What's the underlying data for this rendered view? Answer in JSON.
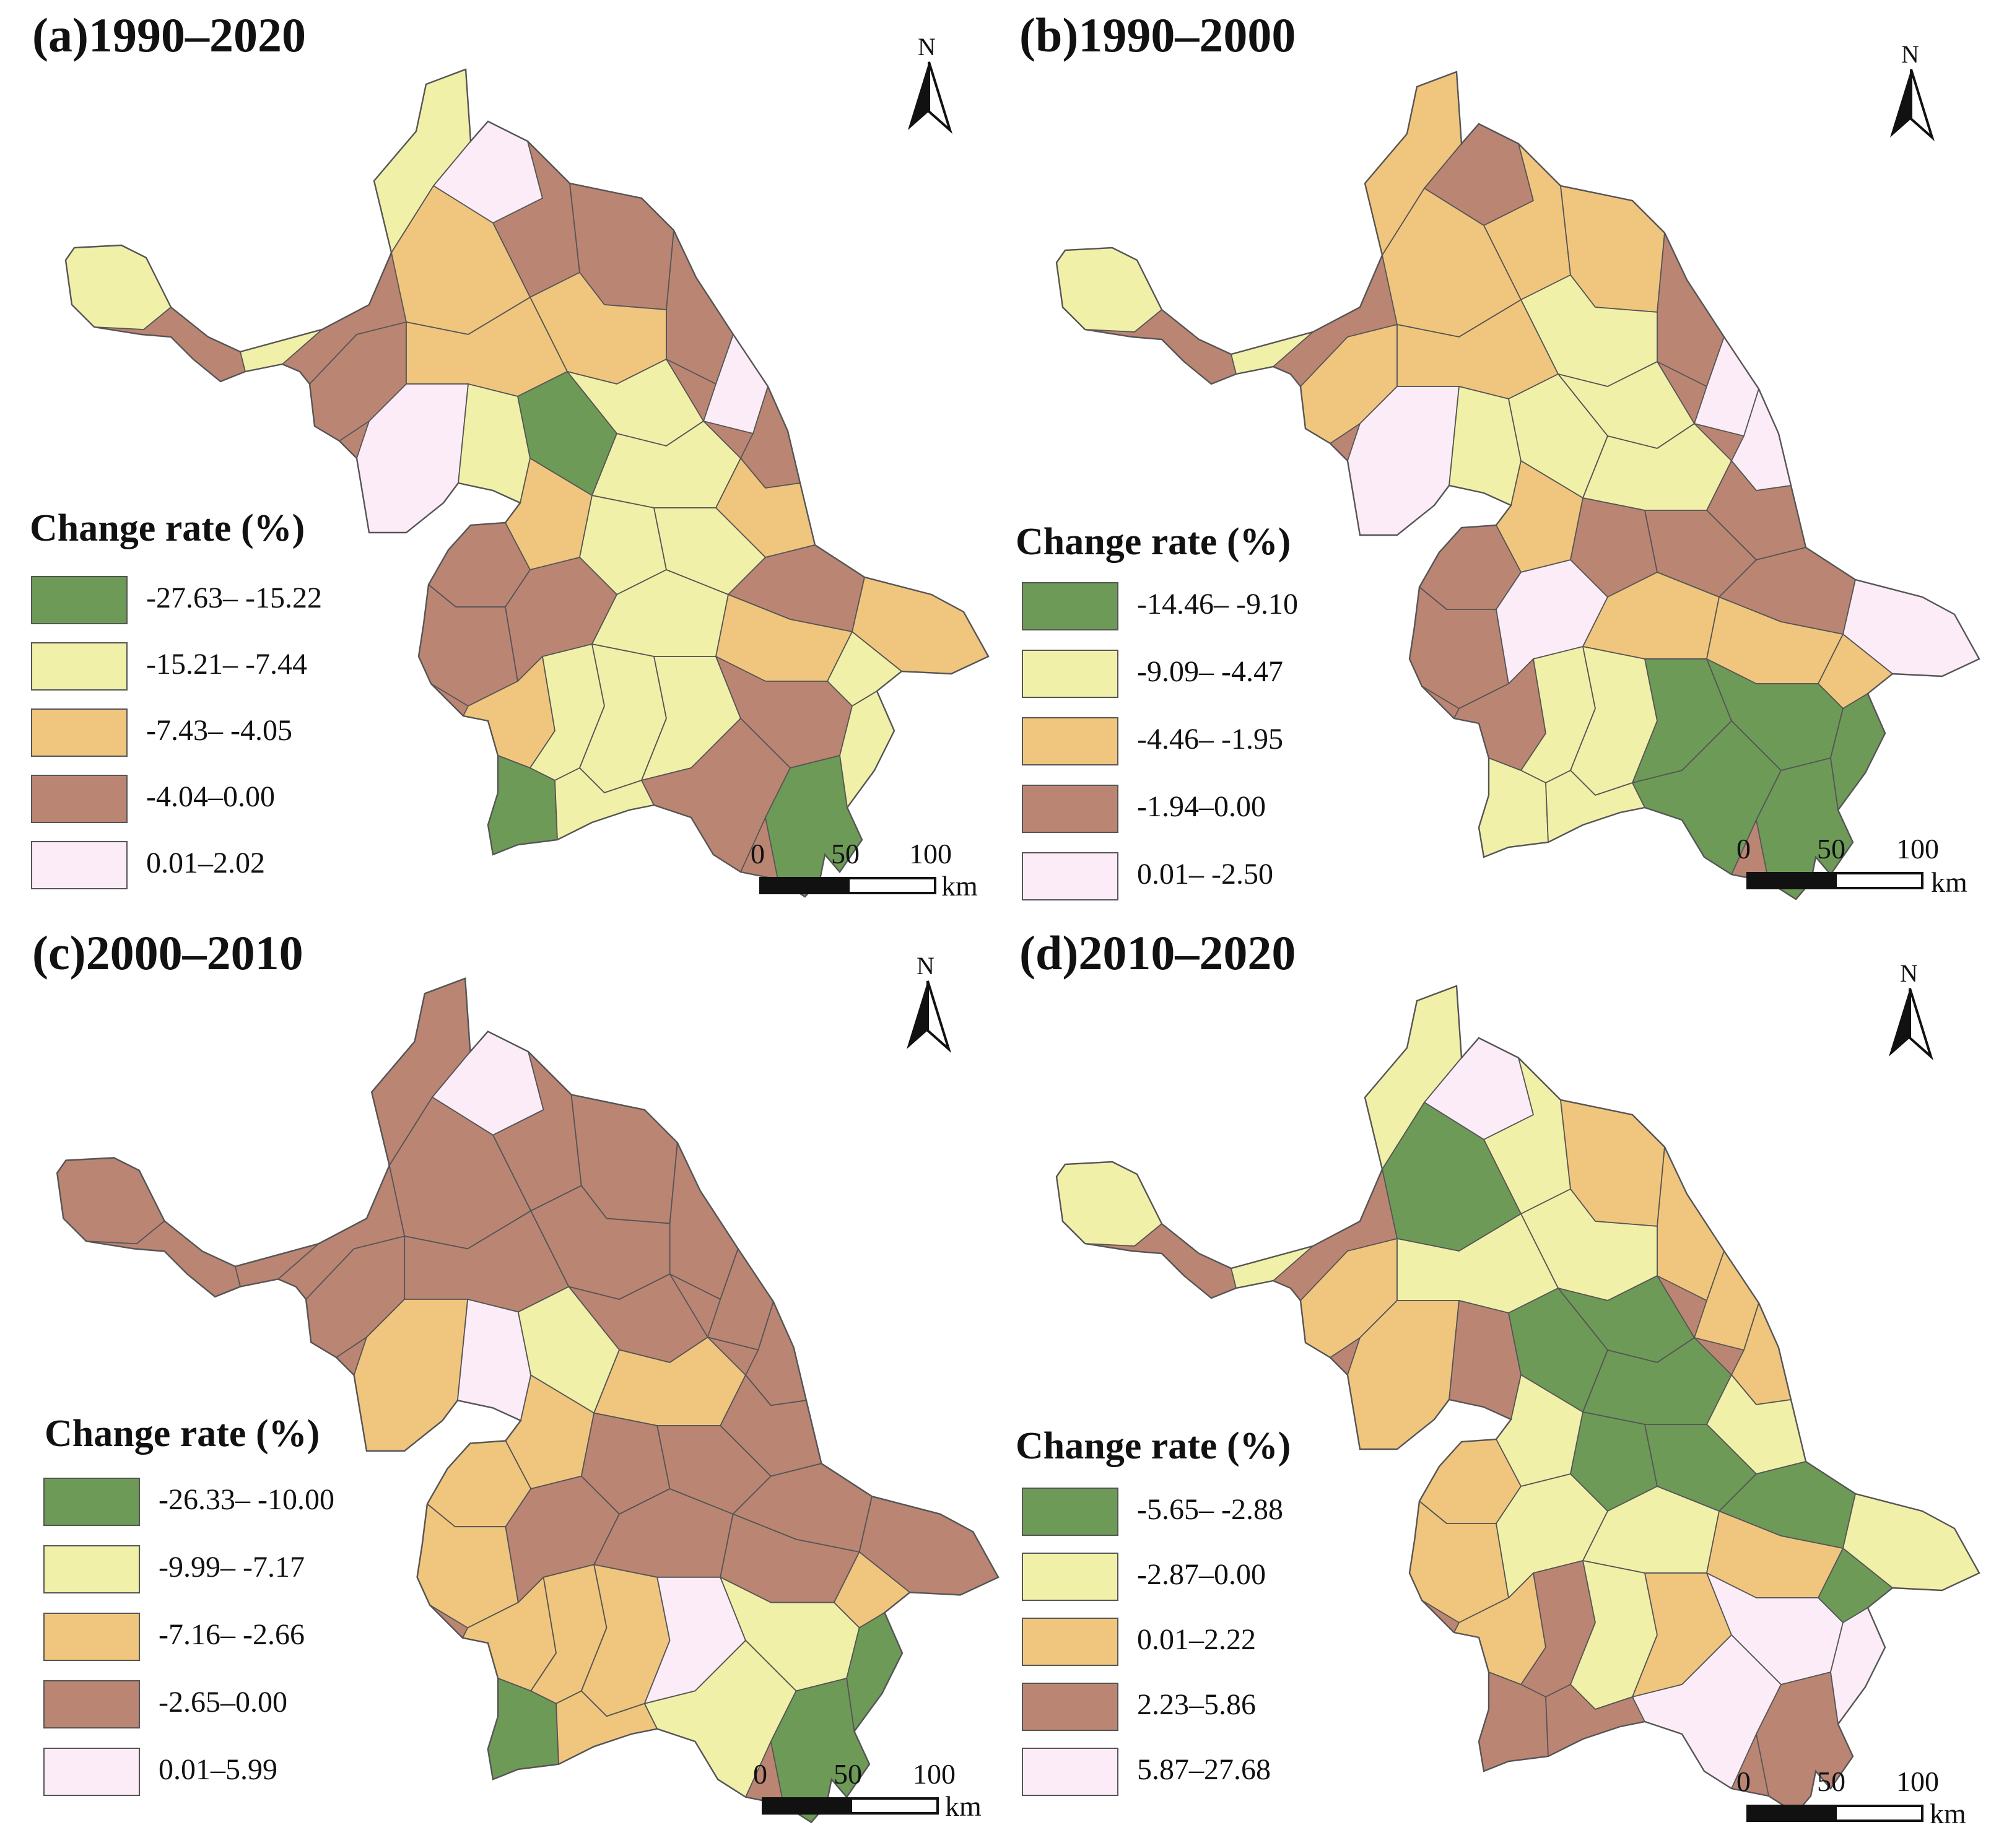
{
  "colors": {
    "green": "#6e9a58",
    "yellow": "#f1f0a9",
    "orange": "#f0c67e",
    "brown": "#bb8574",
    "pink": "#fbecf8",
    "border": "#555555"
  },
  "north_label": "N",
  "scale_bar": {
    "ticks": [
      "0",
      "50",
      "100"
    ],
    "unit": "km"
  },
  "panels": [
    {
      "title": "(a)1990–2020",
      "legend_title": "Change rate (%)",
      "legend": [
        {
          "label": "-27.63– -15.22",
          "color": "green"
        },
        {
          "label": "-15.21– -7.44",
          "color": "yellow"
        },
        {
          "label": "-7.43– -4.05",
          "color": "orange"
        },
        {
          "label": "-4.04–0.00",
          "color": "brown"
        },
        {
          "label": "0.01–2.02",
          "color": "pink"
        }
      ]
    },
    {
      "title": "(b)1990–2000",
      "legend_title": "Change rate (%)",
      "legend": [
        {
          "label": "-14.46– -9.10",
          "color": "green"
        },
        {
          "label": "-9.09– -4.47",
          "color": "yellow"
        },
        {
          "label": "-4.46– -1.95",
          "color": "orange"
        },
        {
          "label": "-1.94–0.00",
          "color": "brown"
        },
        {
          "label": "0.01– -2.50",
          "color": "pink"
        }
      ]
    },
    {
      "title": "(c)2000–2010",
      "legend_title": "Change rate (%)",
      "legend": [
        {
          "label": "-26.33– -10.00",
          "color": "green"
        },
        {
          "label": "-9.99– -7.17",
          "color": "yellow"
        },
        {
          "label": "-7.16– -2.66",
          "color": "orange"
        },
        {
          "label": "-2.65–0.00",
          "color": "brown"
        },
        {
          "label": "0.01–5.99",
          "color": "pink"
        }
      ]
    },
    {
      "title": "(d)2010–2020",
      "legend_title": "Change rate (%)",
      "legend": [
        {
          "label": "-5.65– -2.88",
          "color": "green"
        },
        {
          "label": "-2.87–0.00",
          "color": "yellow"
        },
        {
          "label": "0.01–2.22",
          "color": "orange"
        },
        {
          "label": "2.23–5.86",
          "color": "brown"
        },
        {
          "label": "5.87–27.68",
          "color": "pink"
        }
      ]
    }
  ]
}
